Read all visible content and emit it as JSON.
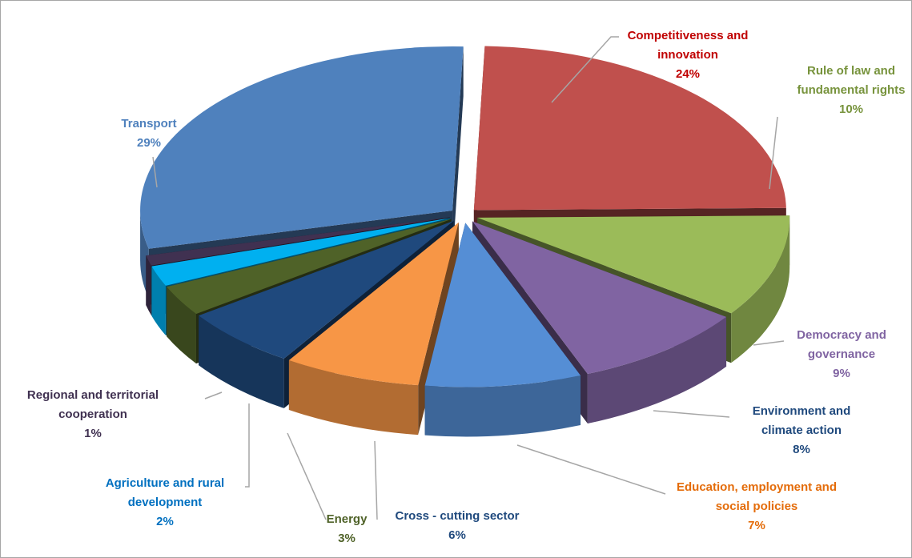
{
  "chart_data": {
    "type": "pie",
    "categories": [
      "Competitiveness and innovation",
      "Rule of law and fundamental rights",
      "Democracy and governance",
      "Environment and climate action",
      "Education, employment and social policies",
      "Cross - cutting sector",
      "Energy",
      "Agriculture and rural development",
      "Regional and territorial cooperation",
      "Transport"
    ],
    "values": [
      24,
      10,
      9,
      8,
      7,
      6,
      3,
      2,
      1,
      29
    ],
    "value_labels": [
      "24%",
      "10%",
      "9%",
      "8%",
      "7%",
      "6%",
      "3%",
      "2%",
      "1%",
      "29%"
    ],
    "colors": [
      "#c0504d",
      "#9bbb59",
      "#8064a2",
      "#558ed5",
      "#f79646",
      "#1f497d",
      "#4f6228",
      "#00b0f0",
      "#403151",
      "#4f81bd"
    ],
    "label_colors": [
      "#c00000",
      "#77933c",
      "#8064a2",
      "#1f497d",
      "#e46c0a",
      "#1f497d",
      "#4f6228",
      "#0070c0",
      "#403151",
      "#4f81bd"
    ]
  }
}
